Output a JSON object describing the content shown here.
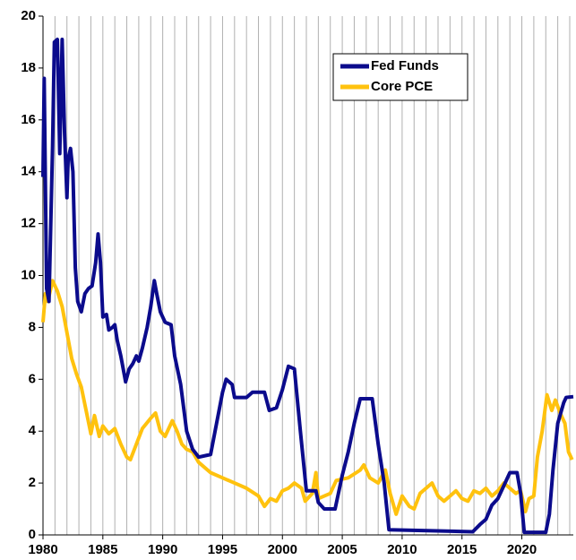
{
  "chart_data": {
    "type": "line",
    "xlim": [
      1980,
      2024.3
    ],
    "ylim": [
      0,
      20
    ],
    "xticks": [
      1980,
      1985,
      1990,
      1995,
      2000,
      2005,
      2010,
      2015,
      2020
    ],
    "yticks": [
      0,
      2,
      4,
      6,
      8,
      10,
      12,
      14,
      16,
      18,
      20
    ],
    "xgrid": [
      1980,
      1981,
      1982,
      1983,
      1984,
      1985,
      1986,
      1987,
      1988,
      1989,
      1990,
      1991,
      1992,
      1993,
      1994,
      1995,
      1996,
      1997,
      1998,
      1999,
      2000,
      2001,
      2002,
      2003,
      2004,
      2005,
      2006,
      2007,
      2008,
      2009,
      2010,
      2011,
      2012,
      2013,
      2014,
      2015,
      2016,
      2017,
      2018,
      2019,
      2020,
      2021,
      2022,
      2023,
      2024
    ],
    "legend": "upper right",
    "series": [
      {
        "name": "Fed Funds",
        "color": "#0b0b8c",
        "x": [
          1980.0,
          1980.1,
          1980.3,
          1980.5,
          1980.8,
          1980.95,
          1981.2,
          1981.4,
          1981.6,
          1981.8,
          1982.0,
          1982.1,
          1982.3,
          1982.5,
          1982.7,
          1982.9,
          1983.2,
          1983.5,
          1983.8,
          1984.1,
          1984.4,
          1984.6,
          1984.8,
          1985.0,
          1985.3,
          1985.5,
          1985.8,
          1986.0,
          1986.2,
          1986.5,
          1986.9,
          1987.2,
          1987.5,
          1987.8,
          1988.0,
          1988.3,
          1988.7,
          1989.0,
          1989.3,
          1989.5,
          1989.8,
          1990.2,
          1990.7,
          1991.0,
          1991.5,
          1992.0,
          1992.5,
          1993.0,
          1994.0,
          1994.5,
          1995.0,
          1995.3,
          1995.8,
          1996.0,
          1997.0,
          1997.5,
          1998.5,
          1998.9,
          1999.5,
          2000.0,
          2000.5,
          2001.0,
          2001.5,
          2002.0,
          2002.8,
          2003.0,
          2003.5,
          2004.4,
          2005.0,
          2005.5,
          2006.0,
          2006.5,
          2007.5,
          2008.0,
          2008.5,
          2008.9,
          2015.9,
          2016.5,
          2017.0,
          2017.5,
          2018.0,
          2018.5,
          2019.0,
          2019.6,
          2019.9,
          2020.2,
          2022.0,
          2022.3,
          2022.6,
          2023.0,
          2023.5,
          2023.7,
          2024.3
        ],
        "values": [
          13.8,
          17.6,
          9.5,
          9.0,
          15,
          19,
          19.1,
          14.7,
          19.1,
          15.5,
          13,
          14.5,
          14.9,
          14,
          10.3,
          9,
          8.6,
          9.3,
          9.5,
          9.6,
          10.5,
          11.6,
          10.5,
          8.4,
          8.5,
          7.9,
          8.0,
          8.1,
          7.5,
          6.9,
          5.9,
          6.4,
          6.6,
          6.9,
          6.7,
          7.2,
          8.0,
          8.8,
          9.8,
          9.3,
          8.6,
          8.2,
          8.1,
          6.9,
          5.8,
          4.0,
          3.3,
          3.0,
          3.1,
          4.3,
          5.5,
          6.0,
          5.8,
          5.3,
          5.3,
          5.5,
          5.5,
          4.8,
          4.9,
          5.6,
          6.5,
          6.4,
          4.0,
          1.7,
          1.7,
          1.25,
          1.0,
          1.0,
          2.3,
          3.2,
          4.3,
          5.25,
          5.25,
          3.5,
          2.0,
          0.2,
          0.12,
          0.4,
          0.6,
          1.15,
          1.4,
          1.9,
          2.4,
          2.4,
          1.6,
          0.1,
          0.1,
          0.8,
          2.5,
          4.3,
          5.1,
          5.3,
          5.33
        ]
      },
      {
        "name": "Core PCE",
        "color": "#ffc20e",
        "x": [
          1980.0,
          1980.2,
          1980.4,
          1980.8,
          1981.2,
          1981.6,
          1982.0,
          1982.4,
          1982.8,
          1983.2,
          1983.6,
          1984.0,
          1984.3,
          1984.7,
          1985.0,
          1985.5,
          1986.0,
          1986.5,
          1987.0,
          1987.3,
          1987.8,
          1988.3,
          1989.0,
          1989.4,
          1989.8,
          1990.2,
          1990.8,
          1991.2,
          1991.6,
          1992.0,
          1992.5,
          1993.0,
          1994.0,
          1995.0,
          1996.0,
          1997.0,
          1998.0,
          1998.5,
          1999.0,
          1999.5,
          2000.0,
          2000.5,
          2001.0,
          2001.6,
          2001.9,
          2002.5,
          2002.8,
          2003.0,
          2003.5,
          2004.0,
          2004.5,
          2005.5,
          2006.5,
          2006.8,
          2007.3,
          2008.0,
          2008.6,
          2009.0,
          2009.5,
          2010.0,
          2010.6,
          2011.0,
          2011.5,
          2012.0,
          2012.5,
          2013.0,
          2013.5,
          2014.0,
          2014.5,
          2015.0,
          2015.5,
          2016.0,
          2016.5,
          2017.0,
          2017.5,
          2018.0,
          2018.5,
          2019.0,
          2019.5,
          2019.9,
          2020.3,
          2020.6,
          2021.0,
          2021.3,
          2021.7,
          2022.1,
          2022.5,
          2022.8,
          2023.2,
          2023.6,
          2023.9,
          2024.2
        ],
        "values": [
          8.2,
          9.3,
          9.0,
          9.8,
          9.4,
          8.8,
          7.8,
          6.8,
          6.2,
          5.7,
          4.8,
          3.9,
          4.6,
          3.8,
          4.2,
          3.9,
          4.1,
          3.5,
          3.0,
          2.9,
          3.5,
          4.1,
          4.5,
          4.7,
          4.0,
          3.8,
          4.4,
          4.0,
          3.5,
          3.3,
          3.2,
          2.8,
          2.4,
          2.2,
          2.0,
          1.8,
          1.5,
          1.1,
          1.4,
          1.3,
          1.7,
          1.8,
          2.0,
          1.8,
          1.3,
          1.6,
          2.4,
          1.4,
          1.5,
          1.6,
          2.1,
          2.2,
          2.5,
          2.7,
          2.2,
          2.0,
          2.5,
          1.6,
          0.8,
          1.5,
          1.1,
          1.0,
          1.6,
          1.8,
          2.0,
          1.5,
          1.3,
          1.5,
          1.7,
          1.4,
          1.3,
          1.7,
          1.6,
          1.8,
          1.5,
          1.7,
          2.0,
          1.8,
          1.6,
          1.7,
          0.9,
          1.4,
          1.5,
          3.0,
          4.0,
          5.4,
          4.8,
          5.2,
          4.7,
          4.3,
          3.2,
          2.9
        ]
      }
    ]
  }
}
